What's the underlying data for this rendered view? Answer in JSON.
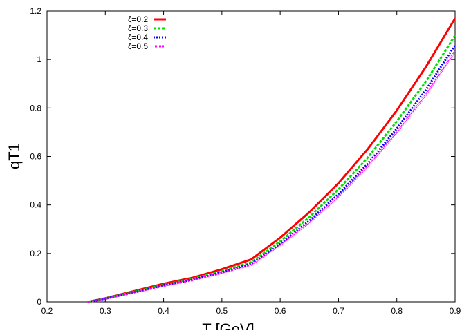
{
  "chart_data": {
    "type": "line",
    "title": "",
    "xlabel": "T [GeV]",
    "ylabel": "qT1",
    "xlim": [
      0.2,
      0.9
    ],
    "ylim": [
      0,
      1.2
    ],
    "xticks": [
      "0.2",
      "0.3",
      "0.4",
      "0.5",
      "0.6",
      "0.7",
      "0.8",
      "0.9"
    ],
    "yticks": [
      "0",
      "0.2",
      "0.4",
      "0.6",
      "0.8",
      "1",
      "1.2"
    ],
    "grid": false,
    "legend_position": "top-left",
    "x": [
      0.27,
      0.3,
      0.35,
      0.4,
      0.45,
      0.5,
      0.55,
      0.6,
      0.65,
      0.7,
      0.75,
      0.8,
      0.85,
      0.9
    ],
    "series": [
      {
        "name": "ζ=0.2",
        "color": "#ff0000",
        "dash": "solid",
        "values": [
          0,
          0.015,
          0.045,
          0.075,
          0.1,
          0.135,
          0.175,
          0.265,
          0.37,
          0.49,
          0.63,
          0.79,
          0.97,
          1.17
        ]
      },
      {
        "name": "ζ=0.3",
        "color": "#00dd00",
        "dash": "dashed",
        "values": [
          0,
          0.014,
          0.042,
          0.07,
          0.095,
          0.127,
          0.163,
          0.25,
          0.35,
          0.465,
          0.595,
          0.745,
          0.91,
          1.1
        ]
      },
      {
        "name": "ζ=0.4",
        "color": "#0000ff",
        "dash": "dotted",
        "values": [
          0,
          0.013,
          0.04,
          0.068,
          0.092,
          0.122,
          0.157,
          0.24,
          0.335,
          0.445,
          0.57,
          0.715,
          0.875,
          1.06
        ]
      },
      {
        "name": "ζ=0.5",
        "color": "#ff00ff",
        "dash": "fine",
        "values": [
          0,
          0.013,
          0.039,
          0.066,
          0.09,
          0.12,
          0.153,
          0.235,
          0.328,
          0.435,
          0.56,
          0.7,
          0.855,
          1.035
        ]
      }
    ]
  }
}
